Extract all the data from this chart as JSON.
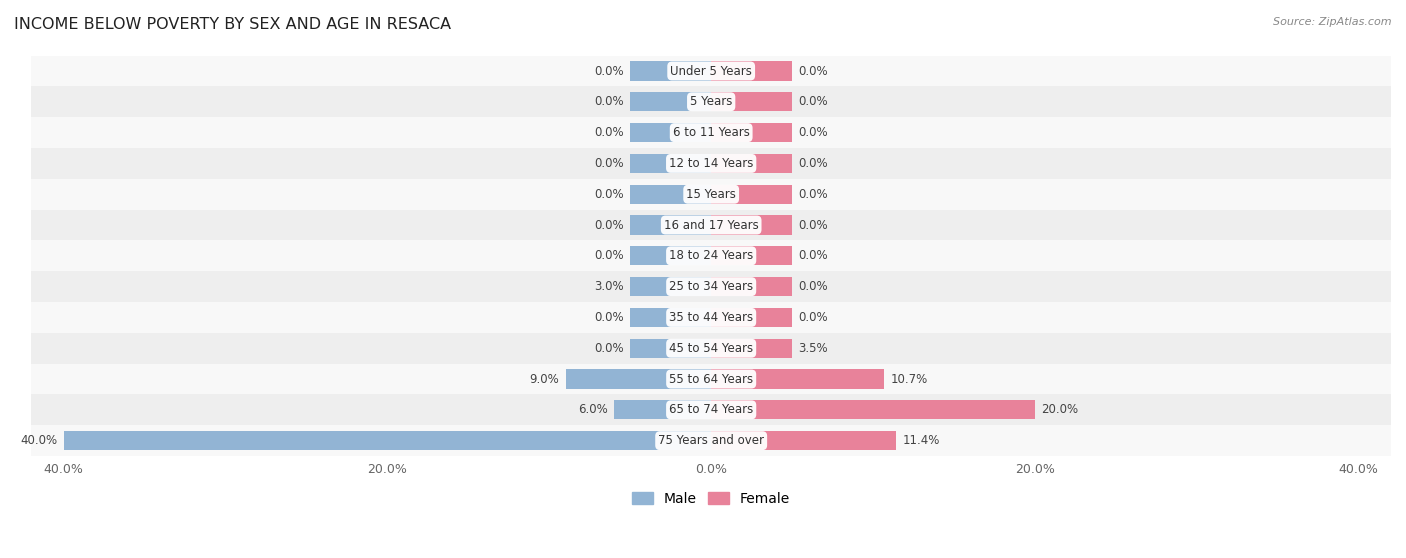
{
  "title": "INCOME BELOW POVERTY BY SEX AND AGE IN RESACA",
  "source": "Source: ZipAtlas.com",
  "categories": [
    "Under 5 Years",
    "5 Years",
    "6 to 11 Years",
    "12 to 14 Years",
    "15 Years",
    "16 and 17 Years",
    "18 to 24 Years",
    "25 to 34 Years",
    "35 to 44 Years",
    "45 to 54 Years",
    "55 to 64 Years",
    "65 to 74 Years",
    "75 Years and over"
  ],
  "male": [
    0.0,
    0.0,
    0.0,
    0.0,
    0.0,
    0.0,
    0.0,
    3.0,
    0.0,
    0.0,
    9.0,
    6.0,
    40.0
  ],
  "female": [
    0.0,
    0.0,
    0.0,
    0.0,
    0.0,
    0.0,
    0.0,
    0.0,
    0.0,
    3.5,
    10.7,
    20.0,
    11.4
  ],
  "male_color": "#92b4d4",
  "female_color": "#e8829a",
  "row_bg_even": "#eeeeee",
  "row_bg_odd": "#f8f8f8",
  "axis_max": 40.0,
  "min_bar": 5.0,
  "title_fontsize": 11.5,
  "label_fontsize": 8.5,
  "tick_fontsize": 9,
  "legend_fontsize": 10,
  "value_fontsize": 8.5
}
